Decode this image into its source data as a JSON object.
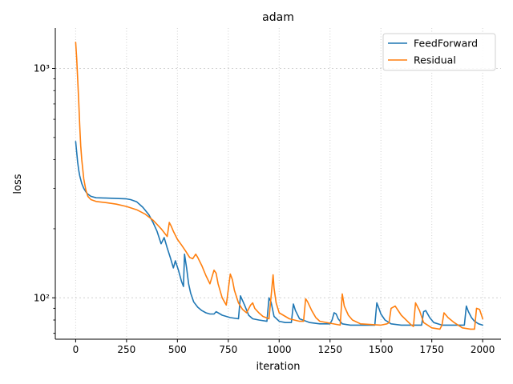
{
  "chart_data": {
    "type": "line",
    "title": "adam",
    "xlabel": "iteration",
    "ylabel": "loss",
    "yscale": "log",
    "xlim": [
      -100,
      2090
    ],
    "ylim": [
      66,
      1500
    ],
    "xticks": [
      0,
      250,
      500,
      750,
      1000,
      1250,
      1500,
      1750,
      2000
    ],
    "yticks": [
      100,
      1000
    ],
    "ytick_labels": [
      "10²",
      "10³"
    ],
    "grid": true,
    "legend": "top-right",
    "series": [
      {
        "name": "FeedForward",
        "color": "#1f77b4",
        "x": [
          0,
          5,
          10,
          15,
          20,
          30,
          40,
          50,
          60,
          75,
          100,
          150,
          200,
          250,
          270,
          300,
          330,
          360,
          380,
          400,
          420,
          435,
          450,
          465,
          480,
          490,
          505,
          520,
          530,
          535,
          545,
          555,
          565,
          580,
          600,
          620,
          640,
          660,
          680,
          690,
          700,
          720,
          760,
          800,
          810,
          830,
          850,
          870,
          900,
          940,
          950,
          960,
          975,
          1000,
          1030,
          1060,
          1070,
          1080,
          1100,
          1150,
          1200,
          1250,
          1260,
          1270,
          1280,
          1290,
          1310,
          1350,
          1400,
          1470,
          1480,
          1490,
          1500,
          1520,
          1550,
          1600,
          1700,
          1710,
          1720,
          1740,
          1760,
          1800,
          1850,
          1910,
          1920,
          1930,
          1945,
          1960,
          1980,
          2000
        ],
        "y": [
          480,
          430,
          390,
          360,
          340,
          315,
          300,
          290,
          283,
          277,
          273,
          272,
          271,
          270,
          268,
          262,
          248,
          230,
          213,
          195,
          172,
          183,
          165,
          150,
          135,
          145,
          132,
          118,
          112,
          155,
          135,
          115,
          105,
          96,
          91,
          88,
          86,
          85,
          85,
          87,
          86,
          84,
          82,
          81,
          102,
          93,
          84,
          81,
          80,
          79,
          100,
          96,
          83,
          79,
          78,
          78,
          94,
          88,
          81,
          78,
          77,
          77,
          80,
          86,
          85,
          81,
          77,
          76,
          76,
          76,
          95,
          90,
          85,
          80,
          77,
          76,
          76,
          87,
          88,
          82,
          78,
          76,
          76,
          76,
          92,
          87,
          82,
          79,
          77,
          76
        ]
      },
      {
        "name": "Residual",
        "color": "#ff7f0e",
        "x": [
          0,
          5,
          10,
          15,
          20,
          25,
          30,
          40,
          50,
          60,
          75,
          100,
          150,
          200,
          250,
          300,
          340,
          380,
          420,
          450,
          460,
          470,
          480,
          500,
          520,
          540,
          560,
          575,
          590,
          600,
          620,
          640,
          660,
          680,
          690,
          700,
          720,
          740,
          760,
          770,
          780,
          800,
          820,
          840,
          860,
          870,
          880,
          900,
          920,
          950,
          970,
          975,
          985,
          1000,
          1050,
          1100,
          1120,
          1130,
          1140,
          1160,
          1180,
          1200,
          1300,
          1310,
          1320,
          1340,
          1360,
          1400,
          1500,
          1530,
          1540,
          1550,
          1570,
          1600,
          1650,
          1660,
          1670,
          1690,
          1710,
          1750,
          1790,
          1800,
          1810,
          1830,
          1860,
          1900,
          1940,
          1960,
          1970,
          1985,
          2000
        ],
        "y": [
          1300,
          1100,
          900,
          720,
          560,
          460,
          400,
          330,
          295,
          277,
          268,
          263,
          260,
          256,
          250,
          242,
          232,
          218,
          200,
          185,
          213,
          205,
          195,
          180,
          170,
          160,
          150,
          148,
          155,
          150,
          138,
          125,
          115,
          132,
          128,
          115,
          100,
          93,
          127,
          120,
          108,
          95,
          89,
          86,
          93,
          95,
          90,
          86,
          83,
          81,
          126,
          110,
          95,
          86,
          81,
          79,
          79,
          99,
          96,
          88,
          82,
          79,
          76,
          104,
          92,
          84,
          80,
          77,
          76,
          77,
          78,
          90,
          92,
          84,
          76,
          75,
          95,
          88,
          78,
          74,
          73,
          76,
          86,
          82,
          78,
          74,
          73,
          73,
          90,
          89,
          81
        ]
      }
    ]
  }
}
